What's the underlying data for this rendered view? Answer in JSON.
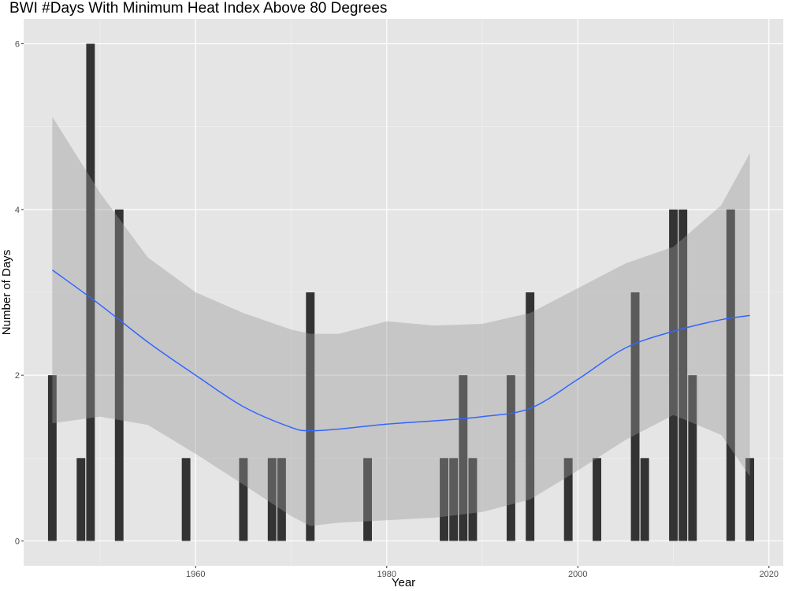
{
  "chart_data": {
    "type": "bar",
    "title": "BWI #Days With Minimum Heat Index Above 80 Degrees",
    "xlabel": "Year",
    "ylabel": "Number of Days",
    "xlim": [
      1942,
      2021.5
    ],
    "ylim": [
      -0.3,
      6.3
    ],
    "x_ticks": [
      1960,
      1980,
      2000,
      2020
    ],
    "y_ticks": [
      0,
      2,
      4,
      6
    ],
    "grid": true,
    "bar_color": "#333333",
    "smooth_color": "#3366ff",
    "ribbon_color": "#999999",
    "panel_background": "#e5e5e5",
    "bars": [
      {
        "year": 1945,
        "days": 2
      },
      {
        "year": 1948,
        "days": 1
      },
      {
        "year": 1949,
        "days": 6
      },
      {
        "year": 1952,
        "days": 4
      },
      {
        "year": 1959,
        "days": 1
      },
      {
        "year": 1965,
        "days": 1
      },
      {
        "year": 1968,
        "days": 1
      },
      {
        "year": 1969,
        "days": 1
      },
      {
        "year": 1972,
        "days": 3
      },
      {
        "year": 1978,
        "days": 1
      },
      {
        "year": 1986,
        "days": 1
      },
      {
        "year": 1987,
        "days": 1
      },
      {
        "year": 1988,
        "days": 2
      },
      {
        "year": 1989,
        "days": 1
      },
      {
        "year": 1993,
        "days": 2
      },
      {
        "year": 1995,
        "days": 3
      },
      {
        "year": 1999,
        "days": 1
      },
      {
        "year": 2002,
        "days": 1
      },
      {
        "year": 2006,
        "days": 3
      },
      {
        "year": 2007,
        "days": 1
      },
      {
        "year": 2010,
        "days": 4
      },
      {
        "year": 2011,
        "days": 4
      },
      {
        "year": 2012,
        "days": 2
      },
      {
        "year": 2016,
        "days": 4
      },
      {
        "year": 2018,
        "days": 1
      }
    ],
    "smooth": {
      "x": [
        1945,
        1950,
        1955,
        1960,
        1965,
        1970,
        1972,
        1975,
        1980,
        1985,
        1990,
        1995,
        2000,
        2005,
        2010,
        2015,
        2018
      ],
      "y": [
        3.27,
        2.85,
        2.4,
        2.0,
        1.62,
        1.37,
        1.33,
        1.35,
        1.41,
        1.45,
        1.5,
        1.6,
        1.95,
        2.33,
        2.53,
        2.67,
        2.72
      ],
      "lower": [
        1.42,
        1.5,
        1.4,
        1.05,
        0.68,
        0.3,
        0.18,
        0.22,
        0.25,
        0.28,
        0.35,
        0.5,
        0.85,
        1.22,
        1.52,
        1.28,
        0.78
      ],
      "upper": [
        5.12,
        4.2,
        3.42,
        3.0,
        2.75,
        2.55,
        2.5,
        2.5,
        2.65,
        2.6,
        2.62,
        2.75,
        3.05,
        3.35,
        3.55,
        4.05,
        4.68
      ]
    }
  }
}
